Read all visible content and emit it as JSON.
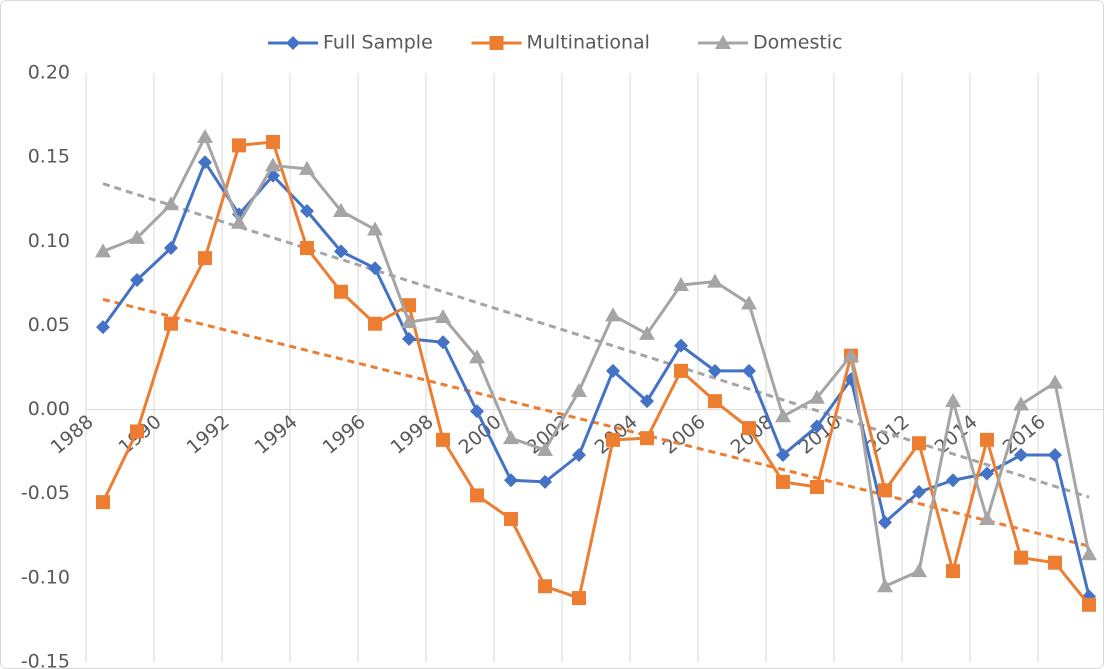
{
  "chart_data": {
    "type": "line",
    "categories": [
      "1988",
      null,
      "1990",
      null,
      "1992",
      null,
      "1994",
      null,
      "1996",
      null,
      "1998",
      null,
      "2000",
      null,
      "2002",
      null,
      "2004",
      null,
      "2006",
      null,
      "2008",
      null,
      "2010",
      null,
      "2012",
      null,
      "2014",
      null,
      "2016",
      null
    ],
    "series": [
      {
        "name": "Full Sample",
        "color": "#4472c4",
        "marker": "diamond",
        "trendline": false,
        "values": [
          0.049,
          0.077,
          0.096,
          0.147,
          0.116,
          0.139,
          0.118,
          0.094,
          0.084,
          0.042,
          0.04,
          -0.001,
          -0.042,
          -0.043,
          -0.027,
          0.023,
          0.005,
          0.038,
          0.023,
          0.023,
          -0.027,
          -0.01,
          0.018,
          -0.067,
          -0.049,
          -0.042,
          -0.038,
          -0.027,
          -0.027,
          -0.111
        ]
      },
      {
        "name": "Multinational",
        "color": "#ed7d31",
        "marker": "square",
        "trendline": true,
        "values": [
          -0.055,
          -0.013,
          0.051,
          0.09,
          0.157,
          0.159,
          0.096,
          0.07,
          0.051,
          0.062,
          -0.018,
          -0.051,
          -0.065,
          -0.105,
          -0.112,
          -0.018,
          -0.017,
          0.023,
          0.005,
          -0.011,
          -0.043,
          -0.046,
          0.032,
          -0.048,
          -0.02,
          -0.096,
          -0.018,
          -0.088,
          -0.091,
          -0.116
        ]
      },
      {
        "name": "Domestic",
        "color": "#a5a5a5",
        "marker": "triangle",
        "trendline": true,
        "values": [
          0.094,
          0.102,
          0.122,
          0.162,
          0.111,
          0.145,
          0.143,
          0.118,
          0.107,
          0.052,
          0.055,
          0.031,
          -0.017,
          -0.024,
          0.011,
          0.056,
          0.045,
          0.074,
          0.076,
          0.063,
          -0.004,
          0.007,
          0.032,
          -0.105,
          -0.096,
          0.005,
          -0.065,
          0.003,
          0.016,
          -0.086
        ]
      }
    ],
    "ylim": [
      -0.15,
      0.2
    ],
    "yticks": [
      {
        "value": -0.15,
        "label": "-0.15"
      },
      {
        "value": -0.1,
        "label": "-0.10"
      },
      {
        "value": -0.05,
        "label": "-0.05"
      },
      {
        "value": 0,
        "label": "0.00"
      },
      {
        "value": 0.05,
        "label": "0.05"
      },
      {
        "value": 0.1,
        "label": "0.10"
      },
      {
        "value": 0.15,
        "label": "0.15"
      },
      {
        "value": 0.2,
        "label": "0.20"
      }
    ],
    "grid": "x",
    "legend": "top"
  }
}
